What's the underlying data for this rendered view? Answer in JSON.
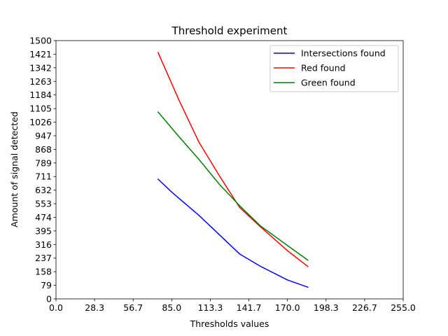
{
  "chart_data": {
    "type": "line",
    "title": "Threshold experiment",
    "xlabel": "Thresholds values",
    "ylabel": "Amount of signal detected",
    "xlim": [
      0,
      255
    ],
    "ylim": [
      0,
      1500
    ],
    "xticks": [
      "0.0",
      "28.3",
      "56.7",
      "85.0",
      "113.3",
      "141.7",
      "170.0",
      "198.3",
      "226.7",
      "255.0"
    ],
    "yticks": [
      "0",
      "79",
      "158",
      "237",
      "316",
      "395",
      "474",
      "553",
      "632",
      "711",
      "789",
      "868",
      "947",
      "1026",
      "1105",
      "1184",
      "1263",
      "1342",
      "1421",
      "1500"
    ],
    "grid": false,
    "legend_position": "top-right",
    "series": [
      {
        "name": "Intersections found",
        "color": "#0000ff",
        "points": [
          [
            75,
            695
          ],
          [
            85,
            620
          ],
          [
            105,
            485
          ],
          [
            135,
            260
          ],
          [
            150,
            190
          ],
          [
            170,
            110
          ],
          [
            185,
            68
          ]
        ]
      },
      {
        "name": "Red found",
        "color": "#ff0000",
        "points": [
          [
            75,
            1430
          ],
          [
            90,
            1160
          ],
          [
            105,
            910
          ],
          [
            120,
            715
          ],
          [
            135,
            530
          ],
          [
            150,
            420
          ],
          [
            170,
            280
          ],
          [
            185,
            188
          ]
        ]
      },
      {
        "name": "Green found",
        "color": "#008000",
        "points": [
          [
            75,
            1085
          ],
          [
            90,
            945
          ],
          [
            105,
            810
          ],
          [
            120,
            665
          ],
          [
            135,
            540
          ],
          [
            150,
            425
          ],
          [
            170,
            310
          ],
          [
            185,
            225
          ]
        ]
      }
    ]
  }
}
